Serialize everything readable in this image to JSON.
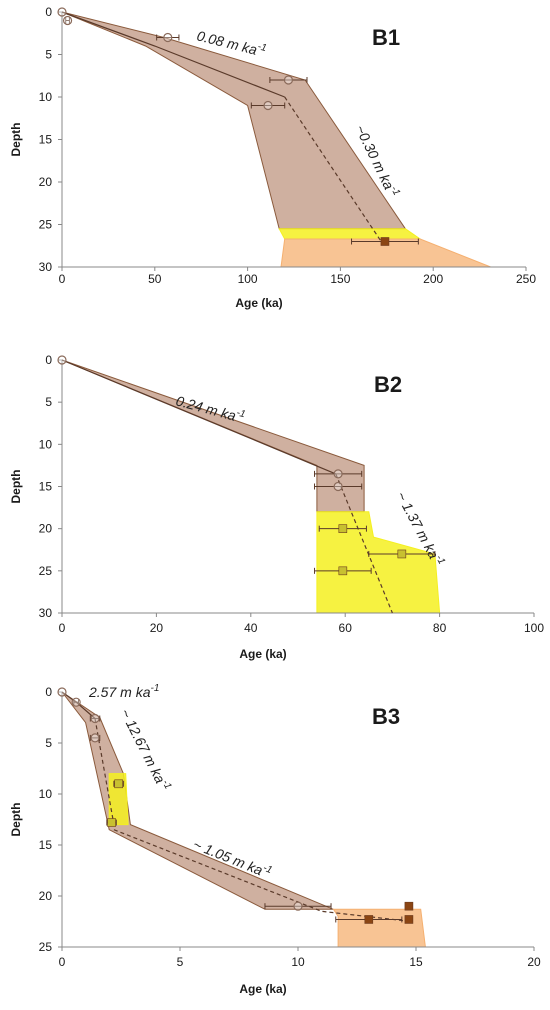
{
  "chart_data": [
    {
      "type": "scatter",
      "panel": "B1",
      "xlabel": "Age (ka)",
      "ylabel": "Depth",
      "xlim": [
        0,
        250
      ],
      "ylim": [
        0,
        30
      ],
      "y_inverted": true,
      "x_ticks": [
        "0",
        "50",
        "100",
        "150",
        "200",
        "250"
      ],
      "y_ticks": [
        "0",
        "5",
        "10",
        "15",
        "20",
        "25",
        "30"
      ],
      "grid": false,
      "colors": {
        "envelope_brown": "#bf9680",
        "envelope_yellow": "#f4f020",
        "envelope_orange": "#f5b070",
        "marker_line": "#7a4a2e",
        "square_brown": "#8b4513"
      },
      "series": [
        {
          "marker": "circle",
          "points": [
            {
              "x": 0,
              "y": 0,
              "xerr": 0
            },
            {
              "x": 3,
              "y": 1,
              "xerr": 1
            },
            {
              "x": 57,
              "y": 3,
              "xerr": 6
            },
            {
              "x": 122,
              "y": 8,
              "xerr": 10
            },
            {
              "x": 111,
              "y": 11,
              "xerr": 9
            }
          ]
        },
        {
          "marker": "square",
          "points": [
            {
              "x": 174,
              "y": 27,
              "xerr": 18
            }
          ]
        }
      ],
      "rate_lines": [
        {
          "label": "0.08 m ka",
          "superscript": "-1",
          "points": [
            [
              0,
              0
            ],
            [
              50,
              4
            ],
            [
              120,
              10
            ]
          ]
        },
        {
          "label": "~0.30 m ka",
          "superscript": "-1",
          "dashed": true,
          "points": [
            [
              120,
              10
            ],
            [
              172,
              27
            ]
          ]
        }
      ],
      "envelopes": [
        {
          "color": "brown",
          "points": [
            [
              0,
              0
            ],
            [
              55,
              3
            ],
            [
              131,
              8
            ],
            [
              185,
              25.5
            ],
            [
              117,
              25.5
            ],
            [
              100,
              11
            ],
            [
              45,
              4
            ],
            [
              0,
              0
            ]
          ]
        },
        {
          "color": "yellow",
          "points": [
            [
              117,
              25.5
            ],
            [
              185,
              25.5
            ],
            [
              193,
              26.7
            ],
            [
              120,
              26.7
            ]
          ]
        },
        {
          "color": "orange",
          "points": [
            [
              120,
              26.7
            ],
            [
              193,
              26.7
            ],
            [
              231,
              30
            ],
            [
              118,
              30
            ]
          ]
        }
      ]
    },
    {
      "type": "scatter",
      "panel": "B2",
      "xlabel": "Age (ka)",
      "ylabel": "Depth",
      "xlim": [
        0,
        100
      ],
      "ylim": [
        0,
        30
      ],
      "y_inverted": true,
      "x_ticks": [
        "0",
        "20",
        "40",
        "60",
        "80",
        "100"
      ],
      "y_ticks": [
        "0",
        "5",
        "10",
        "15",
        "20",
        "25",
        "30"
      ],
      "grid": false,
      "series": [
        {
          "marker": "circle",
          "points": [
            {
              "x": 0,
              "y": 0,
              "xerr": 0
            },
            {
              "x": 58.5,
              "y": 13.5,
              "xerr": 5
            },
            {
              "x": 58.5,
              "y": 15,
              "xerr": 5
            }
          ]
        },
        {
          "marker": "square",
          "points": [
            {
              "x": 59.5,
              "y": 20,
              "xerr": 5
            },
            {
              "x": 72,
              "y": 23,
              "xerr": 7
            },
            {
              "x": 59.5,
              "y": 25,
              "xerr": 6
            }
          ]
        }
      ],
      "rate_lines": [
        {
          "label": "0.24 m ka",
          "superscript": "-1",
          "points": [
            [
              0,
              0
            ],
            [
              58,
              13.5
            ]
          ]
        },
        {
          "label": "~ 1.37 m ka",
          "superscript": "-1",
          "dashed": true,
          "points": [
            [
              58,
              13.5
            ],
            [
              70,
              30
            ]
          ]
        }
      ],
      "envelopes": [
        {
          "color": "brown",
          "points": [
            [
              0,
              0
            ],
            [
              64,
              12.5
            ],
            [
              64,
              18
            ],
            [
              54,
              18
            ],
            [
              54,
              12.5
            ],
            [
              0,
              0
            ]
          ]
        },
        {
          "color": "yellow",
          "points": [
            [
              54,
              18
            ],
            [
              65,
              18
            ],
            [
              66,
              21
            ],
            [
              79,
              23
            ],
            [
              80,
              30
            ],
            [
              54,
              30
            ]
          ]
        }
      ]
    },
    {
      "type": "scatter",
      "panel": "B3",
      "xlabel": "Age (ka)",
      "ylabel": "Depth",
      "xlim": [
        0,
        20
      ],
      "ylim": [
        0,
        25
      ],
      "y_inverted": true,
      "x_ticks": [
        "0",
        "5",
        "10",
        "15",
        "20"
      ],
      "y_ticks": [
        "0",
        "5",
        "10",
        "15",
        "20",
        "25"
      ],
      "grid": false,
      "series": [
        {
          "marker": "circle",
          "points": [
            {
              "x": 0,
              "y": 0,
              "xerr": 0
            },
            {
              "x": 0.6,
              "y": 1,
              "xerr": 0.1
            },
            {
              "x": 1.4,
              "y": 2.6,
              "xerr": 0.2
            },
            {
              "x": 1.4,
              "y": 4.5,
              "xerr": 0.2
            },
            {
              "x": 10,
              "y": 21,
              "xerr": 1.4
            }
          ]
        },
        {
          "marker": "square",
          "points": [
            {
              "x": 2.4,
              "y": 9,
              "xerr": 0.2
            },
            {
              "x": 2.1,
              "y": 12.8,
              "xerr": 0.2
            },
            {
              "x": 13,
              "y": 22.3,
              "xerr": 1.4
            },
            {
              "x": 14.7,
              "y": 21,
              "xerr": 0.15
            },
            {
              "x": 14.7,
              "y": 22.3,
              "xerr": 0.15
            }
          ]
        }
      ],
      "rate_lines": [
        {
          "label": "2.57 m ka",
          "superscript": "-1",
          "points": [
            [
              0,
              0
            ],
            [
              0.6,
              1
            ],
            [
              1.4,
              2.6
            ]
          ]
        },
        {
          "label": "~ 12.67 m ka",
          "superscript": "-1",
          "dashed": true,
          "points": [
            [
              1.4,
              2.6
            ],
            [
              2.2,
              13
            ]
          ]
        },
        {
          "label": "~ 1.05 m ka",
          "superscript": "-1",
          "dashed": true,
          "points": [
            [
              2.2,
              13.5
            ],
            [
              11,
              21.5
            ],
            [
              14.8,
              22.5
            ]
          ]
        }
      ],
      "envelopes": [
        {
          "color": "brown",
          "points": [
            [
              0,
              0
            ],
            [
              1.6,
              2.5
            ],
            [
              2.6,
              8
            ],
            [
              2.9,
              13
            ],
            [
              11.5,
              21.3
            ],
            [
              8.6,
              21.3
            ],
            [
              2,
              13.5
            ],
            [
              1,
              3
            ],
            [
              0,
              0
            ]
          ]
        },
        {
          "color": "yellow",
          "points": [
            [
              2,
              8
            ],
            [
              2.7,
              8
            ],
            [
              2.8,
              13
            ],
            [
              2,
              13
            ]
          ]
        },
        {
          "color": "orange",
          "points": [
            [
              11.5,
              21.3
            ],
            [
              15.2,
              21.3
            ],
            [
              15.4,
              25
            ],
            [
              11.7,
              25
            ],
            [
              11.7,
              22
            ]
          ]
        }
      ]
    }
  ]
}
